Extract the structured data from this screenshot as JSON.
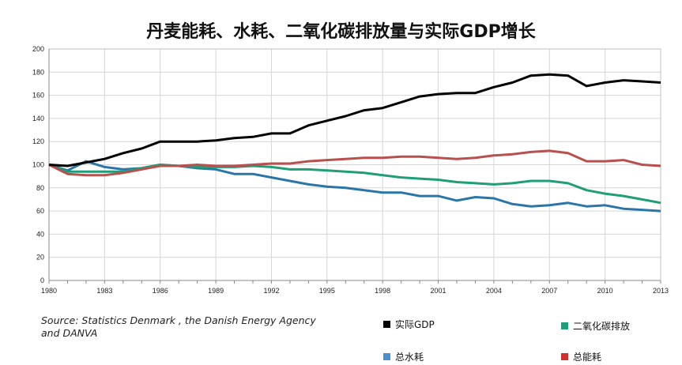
{
  "chart_data": {
    "type": "line",
    "title": "丹麦能耗、水耗、二氧化碳排放量与实际GDP增长",
    "xlabel": "",
    "ylabel": "",
    "source": "Source:  Statistics Denmark , the Danish Energy Agency and DANVA",
    "x": [
      1980,
      1981,
      1982,
      1983,
      1984,
      1985,
      1986,
      1987,
      1988,
      1989,
      1990,
      1991,
      1992,
      1993,
      1994,
      1995,
      1996,
      1997,
      1998,
      1999,
      2000,
      2001,
      2002,
      2003,
      2004,
      2005,
      2006,
      2007,
      2008,
      2009,
      2010,
      2011,
      2012,
      2013
    ],
    "x_ticks": [
      "1980",
      "1983",
      "1986",
      "1989",
      "1992",
      "1995",
      "1998",
      "2001",
      "2004",
      "2007",
      "2010",
      "2013"
    ],
    "y_ticks": [
      "0",
      "20",
      "40",
      "60",
      "80",
      "100",
      "120",
      "140",
      "160",
      "180",
      "200"
    ],
    "ylim": [
      0,
      200
    ],
    "grid": true,
    "legend_position": "bottom",
    "series": [
      {
        "name": "实际GDP",
        "color": "#000000",
        "values": [
          100,
          99,
          102,
          105,
          110,
          114,
          120,
          120,
          120,
          121,
          123,
          124,
          127,
          127,
          134,
          138,
          142,
          147,
          149,
          154,
          159,
          161,
          162,
          162,
          167,
          171,
          177,
          178,
          177,
          168,
          171,
          173,
          172,
          171
        ]
      },
      {
        "name": "二氧化碳排放",
        "color": "#1f9e78",
        "values": [
          100,
          94,
          94,
          94,
          94,
          97,
          100,
          99,
          98,
          98,
          98,
          99,
          98,
          96,
          96,
          95,
          94,
          93,
          91,
          89,
          88,
          87,
          85,
          84,
          83,
          84,
          86,
          86,
          84,
          78,
          75,
          73,
          70,
          67
        ]
      },
      {
        "name": "总水耗",
        "color": "#2a76a8",
        "values": [
          100,
          95,
          103,
          98,
          96,
          97,
          100,
          99,
          97,
          96,
          92,
          92,
          89,
          86,
          83,
          81,
          80,
          78,
          76,
          76,
          73,
          73,
          69,
          72,
          71,
          66,
          64,
          65,
          67,
          64,
          65,
          62,
          61,
          60
        ]
      },
      {
        "name": "总能耗",
        "color": "#b8504e",
        "values": [
          100,
          92,
          91,
          91,
          93,
          96,
          99,
          99,
          100,
          99,
          99,
          100,
          101,
          101,
          103,
          104,
          105,
          106,
          106,
          107,
          107,
          106,
          105,
          106,
          108,
          109,
          111,
          112,
          110,
          103,
          103,
          104,
          100,
          99
        ]
      }
    ]
  }
}
